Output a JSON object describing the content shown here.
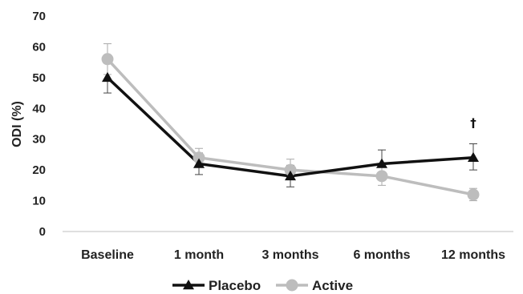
{
  "chart_data": {
    "type": "line",
    "title": "",
    "xlabel": "",
    "ylabel": "ODI (%)",
    "ylim": [
      0,
      70
    ],
    "yticks": [
      0,
      10,
      20,
      30,
      40,
      50,
      60,
      70
    ],
    "categories": [
      "Baseline",
      "1 month",
      "3 months",
      "6 months",
      "12 months"
    ],
    "grid": false,
    "legend_position": "bottom",
    "series": [
      {
        "name": "Placebo",
        "color": "#111111",
        "marker": "triangle",
        "values": [
          50,
          22,
          18,
          22,
          24
        ],
        "error_low": [
          45,
          18.5,
          14.5,
          18,
          20
        ],
        "error_high": [
          55,
          25.5,
          21.5,
          26.5,
          28.5
        ]
      },
      {
        "name": "Active",
        "color": "#bdbdbd",
        "marker": "circle",
        "values": [
          56,
          24,
          20,
          18,
          12
        ],
        "error_low": [
          51,
          21,
          17,
          15,
          10
        ],
        "error_high": [
          61,
          27,
          23.5,
          21,
          14
        ]
      }
    ],
    "annotations": [
      {
        "text": "†",
        "category": "12 months",
        "y": 35
      }
    ]
  }
}
